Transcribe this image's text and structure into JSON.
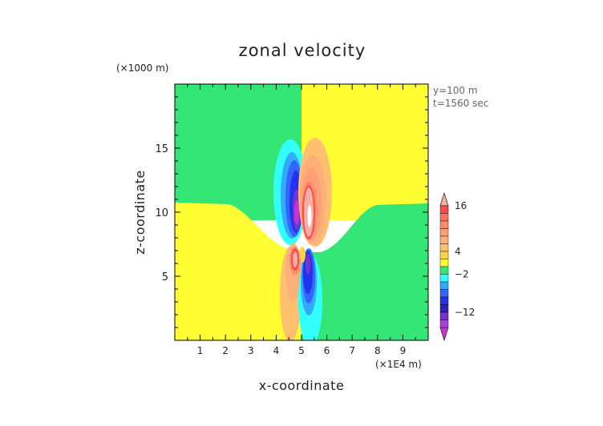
{
  "chart_data": {
    "type": "heatmap",
    "title": "zonal velocity",
    "xlabel": "x-coordinate",
    "ylabel": "z-coordinate",
    "x_scale_label": "(×1E4 m)",
    "y_scale_label": "(×1000 m)",
    "annotations": [
      "y=100 m",
      "t=1560 sec"
    ],
    "xlim": [
      0,
      10
    ],
    "ylim": [
      0,
      20
    ],
    "x_ticks": [
      "1",
      "2",
      "3",
      "4",
      "5",
      "6",
      "7",
      "8",
      "9"
    ],
    "y_ticks": [
      "5",
      "10",
      "15"
    ],
    "colorbar": {
      "tick_labels": [
        "16",
        "4",
        "−2",
        "−12"
      ],
      "levels": [
        {
          "value": 18,
          "color": "#f4b0a6"
        },
        {
          "value": 16,
          "color": "#ff4a4a"
        },
        {
          "value": 14,
          "color": "#ff7060"
        },
        {
          "value": 12,
          "color": "#ff8c6c"
        },
        {
          "value": 10,
          "color": "#ffa077"
        },
        {
          "value": 8,
          "color": "#ffb07a"
        },
        {
          "value": 6,
          "color": "#ffc070"
        },
        {
          "value": 4,
          "color": "#ffd24a"
        },
        {
          "value": 2,
          "color": "#ffff33"
        },
        {
          "value": 0,
          "color": "#33e675"
        },
        {
          "value": -2,
          "color": "#33ffff"
        },
        {
          "value": -4,
          "color": "#33aaff"
        },
        {
          "value": -6,
          "color": "#3366ff"
        },
        {
          "value": -8,
          "color": "#2233ee"
        },
        {
          "value": -10,
          "color": "#3020c0"
        },
        {
          "value": -12,
          "color": "#7733cc"
        },
        {
          "value": -14,
          "color": "#a644d6"
        },
        {
          "value": -16,
          "color": "#cc33cc"
        }
      ]
    },
    "background_regions": [
      {
        "region": "upper-left",
        "color": "#33e675"
      },
      {
        "region": "upper-right",
        "color": "#ffff33"
      },
      {
        "region": "lower-left",
        "color": "#ffff33"
      },
      {
        "region": "lower-right",
        "color": "#33e675"
      }
    ],
    "features": [
      {
        "kind": "negative-lobe",
        "x": 4.5,
        "z": 12.0,
        "min": -12
      },
      {
        "kind": "positive-lobe",
        "x": 5.25,
        "z": 11.2,
        "max": 18
      },
      {
        "kind": "positive-lobe",
        "x": 4.75,
        "z": 6.5,
        "max": 16
      },
      {
        "kind": "negative-lobe",
        "x": 5.25,
        "z": 5.5,
        "min": -10
      }
    ]
  }
}
